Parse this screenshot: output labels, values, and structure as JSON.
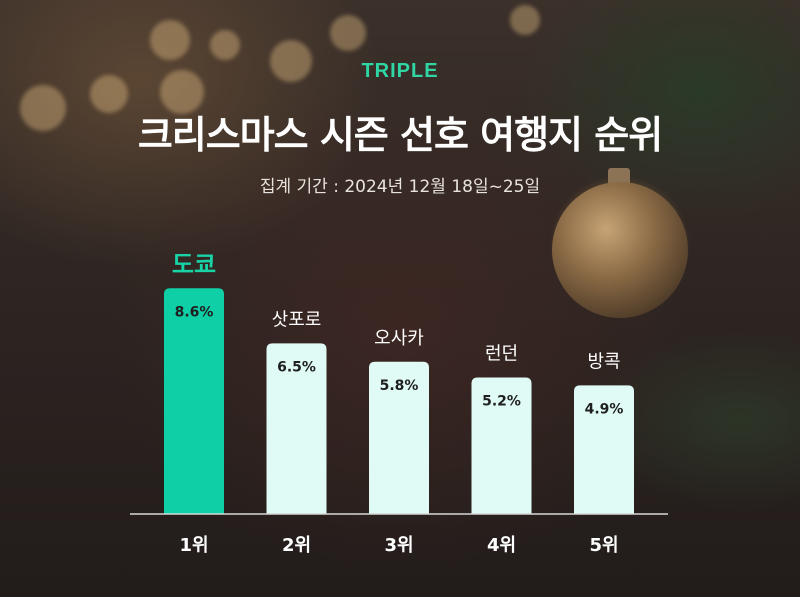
{
  "brand": "TRIPLE",
  "title": "크리스마스 시즌 선호 여행지 순위",
  "subtitle": "집계 기간 : 2024년 12월 18일~25일",
  "colors": {
    "highlight": "#0ecfa6",
    "bar": "#e0fbf5",
    "highlight_label": "#17d3a6",
    "label": "#ffffff",
    "value_text": "#1f1f1f"
  },
  "chart_data": {
    "type": "bar",
    "categories": [
      "도쿄",
      "삿포로",
      "오사카",
      "런던",
      "방콕"
    ],
    "values": [
      8.6,
      6.5,
      5.8,
      5.2,
      4.9
    ],
    "value_labels": [
      "8.6%",
      "6.5%",
      "5.8%",
      "5.2%",
      "4.9%"
    ],
    "rank_labels": [
      "1위",
      "2위",
      "3위",
      "4위",
      "5위"
    ],
    "highlight_index": 0,
    "ylim": [
      0,
      9.6
    ],
    "title": "크리스마스 시즌 선호 여행지 순위",
    "xlabel": "",
    "ylabel": "",
    "grid": false
  }
}
